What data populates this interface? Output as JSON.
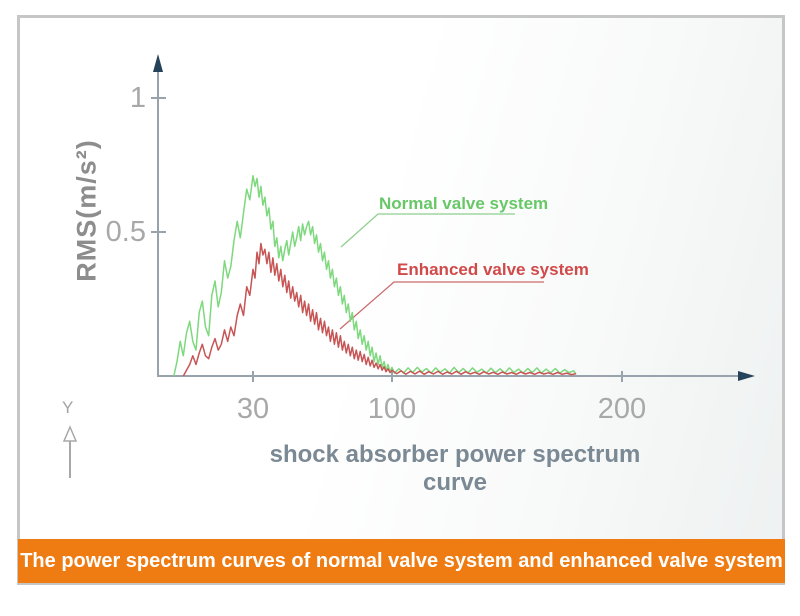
{
  "banner": {
    "text": "The power spectrum curves of normal valve system and enhanced valve system",
    "background": "#ee7c13",
    "text_color": "#ffffff"
  },
  "y_axis": {
    "label": "RMS(m/s²)"
  },
  "x_axis": {
    "title": "shock absorber power spectrum curve"
  },
  "legend": {
    "normal": {
      "label": "Normal valve system",
      "color": "#68c868"
    },
    "enhanced": {
      "label": "Enhanced valve system",
      "color": "#d04a4a"
    }
  },
  "y_marker": {
    "label": "Y"
  },
  "colors": {
    "frame_border": "#c6c6c6",
    "axis_line": "#98a3ab",
    "axis_arrow": "#24425a",
    "tick_text": "#a8a8a8"
  },
  "chart_data": {
    "type": "line",
    "title": "",
    "xlabel": "shock absorber power spectrum curve",
    "ylabel": "RMS(m/s²)",
    "xlim": [
      0,
      260
    ],
    "ylim": [
      0,
      1.15
    ],
    "grid": false,
    "legend_position": "inline-annotations",
    "x_ticks": [
      {
        "value": 30,
        "label": "30"
      },
      {
        "value": 100,
        "label": "100"
      },
      {
        "value": 200,
        "label": "200"
      }
    ],
    "y_ticks": [
      {
        "value": 1,
        "label": "1"
      },
      {
        "value": 0.5,
        "label": "0.5"
      }
    ],
    "series": [
      {
        "name": "Normal valve system",
        "color": "#7ed87e",
        "points": [
          [
            5,
            0
          ],
          [
            6,
            0.05
          ],
          [
            7,
            0.12
          ],
          [
            8,
            0.07
          ],
          [
            9,
            0.15
          ],
          [
            10,
            0.19
          ],
          [
            11,
            0.12
          ],
          [
            12,
            0.09
          ],
          [
            13,
            0.22
          ],
          [
            14,
            0.26
          ],
          [
            15,
            0.17
          ],
          [
            16,
            0.14
          ],
          [
            17,
            0.28
          ],
          [
            18,
            0.33
          ],
          [
            19,
            0.24
          ],
          [
            20,
            0.29
          ],
          [
            21,
            0.4
          ],
          [
            22,
            0.34
          ],
          [
            23,
            0.38
          ],
          [
            24,
            0.47
          ],
          [
            25,
            0.54
          ],
          [
            26,
            0.48
          ],
          [
            27,
            0.57
          ],
          [
            28,
            0.66
          ],
          [
            29,
            0.62
          ],
          [
            30,
            0.71
          ],
          [
            31,
            0.67
          ],
          [
            32,
            0.7
          ],
          [
            33,
            0.63
          ],
          [
            34,
            0.67
          ],
          [
            35,
            0.6
          ],
          [
            36,
            0.63
          ],
          [
            37,
            0.56
          ],
          [
            38,
            0.59
          ],
          [
            39,
            0.51
          ],
          [
            40,
            0.54
          ],
          [
            41,
            0.45
          ],
          [
            42,
            0.48
          ],
          [
            43,
            0.41
          ],
          [
            44,
            0.45
          ],
          [
            45,
            0.4
          ],
          [
            46,
            0.44
          ],
          [
            47,
            0.47
          ],
          [
            48,
            0.42
          ],
          [
            49,
            0.46
          ],
          [
            50,
            0.5
          ],
          [
            51,
            0.45
          ],
          [
            52,
            0.48
          ],
          [
            53,
            0.52
          ],
          [
            54,
            0.47
          ],
          [
            55,
            0.53
          ],
          [
            56,
            0.49
          ],
          [
            57,
            0.52
          ],
          [
            58,
            0.54
          ],
          [
            59,
            0.49
          ],
          [
            60,
            0.52
          ],
          [
            61,
            0.46
          ],
          [
            62,
            0.49
          ],
          [
            63,
            0.43
          ],
          [
            64,
            0.46
          ],
          [
            65,
            0.4
          ],
          [
            66,
            0.43
          ],
          [
            67,
            0.37
          ],
          [
            68,
            0.4
          ],
          [
            69,
            0.34
          ],
          [
            70,
            0.37
          ],
          [
            71,
            0.31
          ],
          [
            72,
            0.34
          ],
          [
            73,
            0.28
          ],
          [
            74,
            0.31
          ],
          [
            75,
            0.25
          ],
          [
            76,
            0.28
          ],
          [
            77,
            0.22
          ],
          [
            78,
            0.25
          ],
          [
            79,
            0.19
          ],
          [
            80,
            0.22
          ],
          [
            81,
            0.16
          ],
          [
            82,
            0.19
          ],
          [
            83,
            0.13
          ],
          [
            84,
            0.16
          ],
          [
            85,
            0.11
          ],
          [
            86,
            0.14
          ],
          [
            87,
            0.09
          ],
          [
            88,
            0.12
          ],
          [
            89,
            0.07
          ],
          [
            90,
            0.1
          ],
          [
            91,
            0.05
          ],
          [
            92,
            0.08
          ],
          [
            93,
            0.04
          ],
          [
            94,
            0.07
          ],
          [
            95,
            0.03
          ],
          [
            96,
            0.05
          ],
          [
            97,
            0.02
          ],
          [
            98,
            0.04
          ],
          [
            99,
            0.015
          ],
          [
            100,
            0.03
          ],
          [
            101,
            0.01
          ],
          [
            103,
            0.025
          ],
          [
            105,
            0.01
          ],
          [
            107,
            0.028
          ],
          [
            109,
            0.012
          ],
          [
            111,
            0.03
          ],
          [
            113,
            0.014
          ],
          [
            115,
            0.026
          ],
          [
            117,
            0.01
          ],
          [
            119,
            0.028
          ],
          [
            121,
            0.013
          ],
          [
            123,
            0.025
          ],
          [
            125,
            0.01
          ],
          [
            127,
            0.03
          ],
          [
            129,
            0.012
          ],
          [
            131,
            0.026
          ],
          [
            133,
            0.01
          ],
          [
            135,
            0.028
          ],
          [
            137,
            0.013
          ],
          [
            139,
            0.024
          ],
          [
            141,
            0.01
          ],
          [
            143,
            0.027
          ],
          [
            145,
            0.012
          ],
          [
            147,
            0.025
          ],
          [
            149,
            0.01
          ],
          [
            151,
            0.028
          ],
          [
            153,
            0.012
          ],
          [
            155,
            0.024
          ],
          [
            157,
            0.01
          ],
          [
            159,
            0.026
          ],
          [
            161,
            0.012
          ],
          [
            163,
            0.028
          ],
          [
            165,
            0.01
          ],
          [
            167,
            0.024
          ],
          [
            169,
            0.011
          ],
          [
            171,
            0.026
          ],
          [
            173,
            0.01
          ],
          [
            175,
            0.022
          ],
          [
            177,
            0.012
          ],
          [
            179,
            0.018
          ],
          [
            180,
            0.006
          ]
        ]
      },
      {
        "name": "Enhanced valve system",
        "color": "#c85555",
        "points": [
          [
            8,
            0
          ],
          [
            10,
            0.04
          ],
          [
            11,
            0.07
          ],
          [
            12,
            0.04
          ],
          [
            13,
            0.08
          ],
          [
            14,
            0.11
          ],
          [
            15,
            0.07
          ],
          [
            16,
            0.06
          ],
          [
            17,
            0.1
          ],
          [
            18,
            0.13
          ],
          [
            19,
            0.09
          ],
          [
            20,
            0.11
          ],
          [
            21,
            0.16
          ],
          [
            22,
            0.12
          ],
          [
            23,
            0.17
          ],
          [
            24,
            0.14
          ],
          [
            25,
            0.21
          ],
          [
            26,
            0.25
          ],
          [
            27,
            0.21
          ],
          [
            28,
            0.31
          ],
          [
            29,
            0.28
          ],
          [
            30,
            0.37
          ],
          [
            31,
            0.34
          ],
          [
            32,
            0.43
          ],
          [
            33,
            0.39
          ],
          [
            34,
            0.46
          ],
          [
            35,
            0.42
          ],
          [
            36,
            0.44
          ],
          [
            37,
            0.39
          ],
          [
            38,
            0.43
          ],
          [
            39,
            0.36
          ],
          [
            40,
            0.41
          ],
          [
            41,
            0.35
          ],
          [
            42,
            0.39
          ],
          [
            43,
            0.33
          ],
          [
            44,
            0.37
          ],
          [
            45,
            0.31
          ],
          [
            46,
            0.35
          ],
          [
            47,
            0.29
          ],
          [
            48,
            0.33
          ],
          [
            49,
            0.27
          ],
          [
            50,
            0.31
          ],
          [
            51,
            0.26
          ],
          [
            52,
            0.29
          ],
          [
            53,
            0.24
          ],
          [
            54,
            0.28
          ],
          [
            55,
            0.22
          ],
          [
            56,
            0.26
          ],
          [
            57,
            0.21
          ],
          [
            58,
            0.25
          ],
          [
            59,
            0.19
          ],
          [
            60,
            0.23
          ],
          [
            61,
            0.18
          ],
          [
            62,
            0.22
          ],
          [
            63,
            0.16
          ],
          [
            64,
            0.2
          ],
          [
            65,
            0.15
          ],
          [
            66,
            0.19
          ],
          [
            67,
            0.14
          ],
          [
            68,
            0.17
          ],
          [
            69,
            0.12
          ],
          [
            70,
            0.16
          ],
          [
            71,
            0.11
          ],
          [
            72,
            0.15
          ],
          [
            73,
            0.1
          ],
          [
            74,
            0.14
          ],
          [
            75,
            0.09
          ],
          [
            76,
            0.12
          ],
          [
            77,
            0.08
          ],
          [
            78,
            0.11
          ],
          [
            79,
            0.07
          ],
          [
            80,
            0.1
          ],
          [
            81,
            0.06
          ],
          [
            82,
            0.09
          ],
          [
            83,
            0.055
          ],
          [
            84,
            0.085
          ],
          [
            85,
            0.05
          ],
          [
            86,
            0.075
          ],
          [
            87,
            0.04
          ],
          [
            88,
            0.065
          ],
          [
            89,
            0.035
          ],
          [
            90,
            0.055
          ],
          [
            91,
            0.03
          ],
          [
            92,
            0.045
          ],
          [
            93,
            0.025
          ],
          [
            94,
            0.04
          ],
          [
            95,
            0.02
          ],
          [
            96,
            0.032
          ],
          [
            97,
            0.015
          ],
          [
            98,
            0.025
          ],
          [
            99,
            0.012
          ],
          [
            100,
            0.02
          ],
          [
            102,
            0.008
          ],
          [
            104,
            0.018
          ],
          [
            106,
            0.006
          ],
          [
            108,
            0.016
          ],
          [
            110,
            0.007
          ],
          [
            112,
            0.017
          ],
          [
            114,
            0.006
          ],
          [
            116,
            0.015
          ],
          [
            118,
            0.007
          ],
          [
            120,
            0.016
          ],
          [
            122,
            0.006
          ],
          [
            124,
            0.014
          ],
          [
            126,
            0.007
          ],
          [
            128,
            0.016
          ],
          [
            130,
            0.006
          ],
          [
            132,
            0.015
          ],
          [
            134,
            0.007
          ],
          [
            136,
            0.013
          ],
          [
            138,
            0.006
          ],
          [
            140,
            0.015
          ],
          [
            142,
            0.007
          ],
          [
            144,
            0.013
          ],
          [
            146,
            0.006
          ],
          [
            148,
            0.014
          ],
          [
            150,
            0.007
          ],
          [
            152,
            0.012
          ],
          [
            154,
            0.006
          ],
          [
            156,
            0.014
          ],
          [
            158,
            0.007
          ],
          [
            160,
            0.012
          ],
          [
            162,
            0.006
          ],
          [
            164,
            0.013
          ],
          [
            166,
            0.007
          ],
          [
            168,
            0.011
          ],
          [
            170,
            0.006
          ],
          [
            172,
            0.012
          ],
          [
            174,
            0.006
          ],
          [
            176,
            0.01
          ],
          [
            178,
            0.005
          ],
          [
            180,
            0.008
          ]
        ]
      }
    ]
  }
}
